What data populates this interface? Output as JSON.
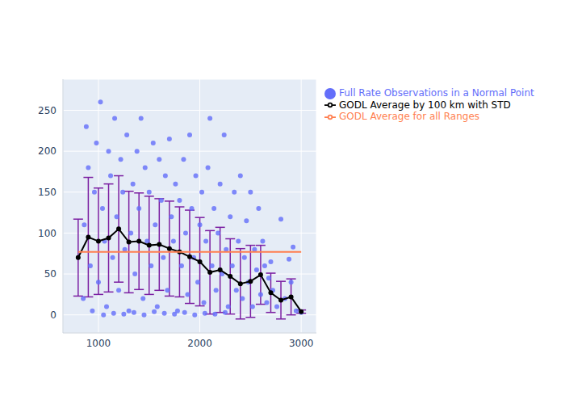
{
  "chart_data": {
    "type": "scatter",
    "xlim": [
      650,
      3150
    ],
    "xticks": [
      1000,
      2000,
      3000
    ],
    "ylim": [
      -22,
      288
    ],
    "yticks": [
      0,
      50,
      100,
      150,
      200,
      250
    ],
    "grid": true,
    "legend": "top right",
    "series": [
      {
        "name": "Full Rate Observations in a Normal Point",
        "type": "scatter",
        "color": "#636efa",
        "marker": "circle",
        "x": [
          850,
          860,
          880,
          900,
          920,
          940,
          960,
          980,
          1000,
          1020,
          1040,
          1060,
          1080,
          1100,
          1120,
          1140,
          1160,
          1180,
          1200,
          1220,
          1240,
          1260,
          1280,
          1300,
          1320,
          1340,
          1360,
          1380,
          1400,
          1420,
          1440,
          1460,
          1480,
          1500,
          1520,
          1540,
          1560,
          1580,
          1600,
          1620,
          1640,
          1660,
          1680,
          1700,
          1720,
          1740,
          1760,
          1780,
          1800,
          1820,
          1840,
          1860,
          1880,
          1900,
          1920,
          1940,
          1960,
          1980,
          2000,
          2020,
          2040,
          2060,
          2080,
          2100,
          2120,
          2140,
          2160,
          2180,
          2200,
          2220,
          2240,
          2260,
          2280,
          2300,
          2320,
          2340,
          2360,
          2380,
          2400,
          2420,
          2440,
          2460,
          2480,
          2500,
          2520,
          2540,
          2560,
          2580,
          2600,
          2620,
          2640,
          2660,
          2680,
          2700,
          2720,
          2760,
          2800,
          2840,
          2880,
          2900,
          2920,
          2950,
          3000,
          1050,
          1150,
          1250,
          1350,
          1450,
          1550,
          1650,
          1750,
          1850,
          1950,
          2050,
          2150,
          2250
        ],
        "values": [
          20,
          110,
          230,
          180,
          60,
          5,
          150,
          210,
          40,
          260,
          130,
          90,
          10,
          200,
          170,
          70,
          240,
          120,
          30,
          190,
          150,
          80,
          220,
          5,
          100,
          160,
          50,
          200,
          130,
          240,
          20,
          180,
          90,
          150,
          60,
          210,
          110,
          10,
          190,
          140,
          70,
          170,
          30,
          215,
          120,
          90,
          160,
          5,
          140,
          60,
          190,
          100,
          25,
          220,
          130,
          70,
          170,
          40,
          110,
          150,
          15,
          90,
          180,
          240,
          60,
          130,
          30,
          100,
          160,
          50,
          220,
          80,
          10,
          120,
          60,
          150,
          30,
          90,
          170,
          20,
          70,
          115,
          40,
          150,
          10,
          80,
          55,
          130,
          25,
          90,
          60,
          15,
          45,
          65,
          30,
          10,
          117,
          20,
          68,
          40,
          83,
          5,
          3,
          0,
          2,
          1,
          3,
          0,
          4,
          2,
          1,
          3,
          0,
          2,
          1,
          3
        ]
      },
      {
        "name": "GODL Average by 100 km with STD",
        "type": "line",
        "color": "#000000",
        "marker": "circle",
        "x": [
          800,
          900,
          1000,
          1100,
          1200,
          1300,
          1400,
          1500,
          1600,
          1700,
          1800,
          1900,
          2000,
          2100,
          2200,
          2300,
          2400,
          2500,
          2600,
          2700,
          2800,
          2900,
          3000
        ],
        "values": [
          70,
          95,
          90,
          94,
          105,
          89,
          90,
          85,
          86,
          81,
          77,
          71,
          65,
          52,
          55,
          47,
          38,
          41,
          49,
          27,
          18,
          22,
          4
        ],
        "std": [
          47,
          73,
          65,
          66,
          65,
          62,
          59,
          60,
          56,
          58,
          55,
          57,
          54,
          51,
          52,
          46,
          43,
          44,
          36,
          24,
          23,
          22,
          2
        ]
      },
      {
        "name": "GODL Average for all Ranges",
        "type": "line",
        "color": "#ff7f50",
        "marker": "none",
        "x": [
          800,
          3000
        ],
        "values": [
          77,
          77
        ]
      }
    ]
  }
}
